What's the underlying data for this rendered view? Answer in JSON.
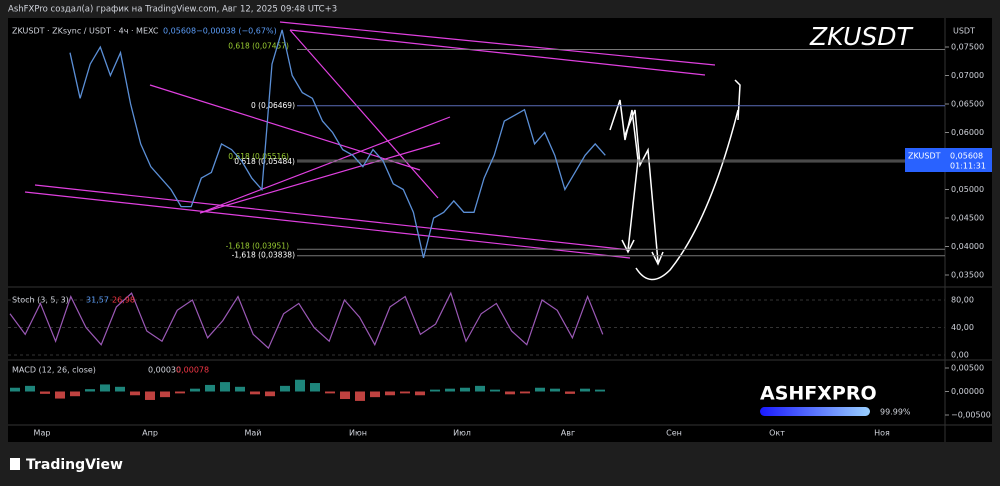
{
  "header": "AshFXPro создал(а) график на TradingView.com, Авг 12, 2025 09:48 UTC+3",
  "legend": {
    "symbol": "ZKUSDT · ZKsync / USDT · 4ч · MEXC",
    "last": "0,05608",
    "change": "−0,00038 (−0,67%)"
  },
  "title": "ZKUSDT",
  "price_axis": {
    "unit": "USDT",
    "ticks": [
      {
        "value": 0.075,
        "label": "0,07500"
      },
      {
        "value": 0.07,
        "label": "0,07000"
      },
      {
        "value": 0.065,
        "label": "0,06500"
      },
      {
        "value": 0.06,
        "label": "0,06000"
      },
      {
        "value": 0.055,
        "label": "0,05500"
      },
      {
        "value": 0.05,
        "label": "0,05000"
      },
      {
        "value": 0.045,
        "label": "0,04500"
      },
      {
        "value": 0.04,
        "label": "0,04000"
      },
      {
        "value": 0.035,
        "label": "0,03500"
      }
    ]
  },
  "price_tag": {
    "symbol": "ZKUSDT",
    "price": "0,05608",
    "timer": "01:11:31"
  },
  "price": [
    0.074,
    0.066,
    0.072,
    0.075,
    0.07,
    0.074,
    0.065,
    0.058,
    0.054,
    0.052,
    0.05,
    0.047,
    0.047,
    0.052,
    0.053,
    0.058,
    0.057,
    0.055,
    0.052,
    0.05,
    0.072,
    0.078,
    0.07,
    0.067,
    0.066,
    0.062,
    0.06,
    0.057,
    0.056,
    0.054,
    0.057,
    0.055,
    0.051,
    0.05,
    0.046,
    0.038,
    0.045,
    0.046,
    0.048,
    0.046,
    0.046,
    0.052,
    0.056,
    0.062,
    0.063,
    0.064,
    0.058,
    0.06,
    0.056,
    0.05,
    0.053,
    0.056,
    0.058,
    0.056
  ],
  "levels": [
    {
      "value": 0.07457,
      "label": "0,618 (0,07457)"
    },
    {
      "value": 0.06469,
      "label": "0 (0,06469)"
    },
    {
      "value": 0.05516,
      "label": "0,618 (0,05516)"
    },
    {
      "value": 0.05484,
      "label": "0,618 (0,05484)"
    },
    {
      "value": 0.03951,
      "label": "-1,618 (0,03951)"
    },
    {
      "value": 0.03838,
      "label": "-1,618 (0,03838)"
    }
  ],
  "stoch": {
    "name": "Stoch (3, 5, 3)",
    "k": "31,57",
    "d": "26,98",
    "ticks": [
      {
        "value": 80,
        "label": "80,00"
      },
      {
        "value": 40,
        "label": "40,00"
      },
      {
        "value": 0,
        "label": "0,00"
      }
    ],
    "values": [
      60,
      30,
      75,
      20,
      85,
      40,
      15,
      70,
      90,
      35,
      20,
      65,
      80,
      25,
      50,
      85,
      30,
      10,
      60,
      75,
      40,
      20,
      80,
      55,
      15,
      70,
      85,
      30,
      45,
      90,
      20,
      60,
      75,
      35,
      15,
      80,
      65,
      25,
      85,
      30
    ]
  },
  "macd": {
    "name": "MACD (12, 26, close)",
    "v1": "0,00030",
    "v2": "0,00078",
    "ticks": [
      {
        "value": 0.005,
        "label": "0,00500"
      },
      {
        "value": 0,
        "label": "0,00000"
      },
      {
        "value": -0.005,
        "label": "−0,00500"
      }
    ],
    "values": [
      0.0008,
      0.0012,
      -0.0005,
      -0.0015,
      -0.001,
      0.0005,
      0.0015,
      0.001,
      -0.0008,
      -0.0018,
      -0.0012,
      -0.0004,
      0.0006,
      0.0014,
      0.002,
      0.001,
      -0.0006,
      -0.001,
      0.0012,
      0.0025,
      0.0018,
      -0.0004,
      -0.0016,
      -0.002,
      -0.0012,
      -0.0008,
      -0.0004,
      -0.0008,
      0.0004,
      0.0006,
      0.0008,
      0.0012,
      0.0004,
      -0.0006,
      -0.0004,
      0.0008,
      0.0006,
      -0.0005,
      0.0006,
      0.0004
    ]
  },
  "dates": [
    "Мар",
    "Апр",
    "Май",
    "Июн",
    "Июл",
    "Авг",
    "Сен",
    "Окт",
    "Ноя"
  ],
  "watermark": {
    "brand": "ASHFXPRO",
    "percent": "99.99%"
  },
  "footer": "TradingView"
}
